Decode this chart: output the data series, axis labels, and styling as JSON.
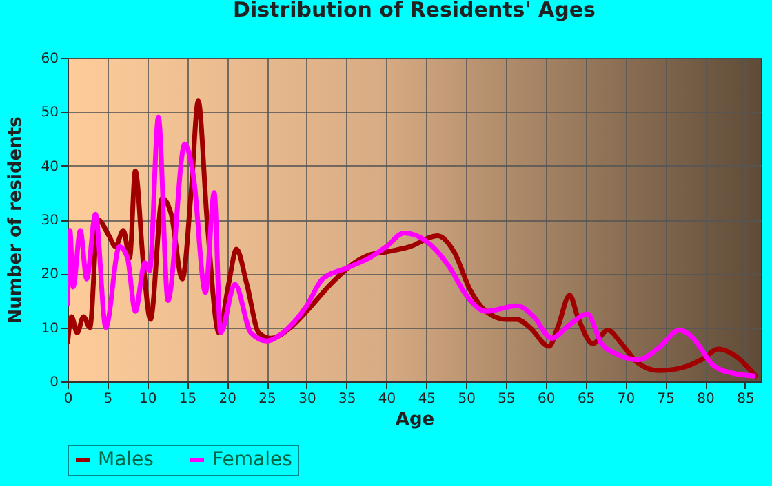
{
  "chart_data": {
    "type": "line",
    "title": "Distribution of Residents' Ages",
    "xlabel": "Age",
    "ylabel": "Number of residents",
    "xlim": [
      0,
      87
    ],
    "xticks": [
      0,
      5,
      10,
      15,
      20,
      25,
      30,
      35,
      40,
      45,
      50,
      55,
      60,
      65,
      70,
      75,
      80,
      85
    ],
    "ylim": [
      0,
      60
    ],
    "yticks": [
      0,
      10,
      20,
      30,
      40,
      50,
      60
    ],
    "grid": true,
    "legend": "bottom",
    "marker": "none",
    "line_style": "solid",
    "series": [
      {
        "name": "Males",
        "color": "#a00000",
        "x": [
          0,
          0.5,
          1.2,
          2,
          2.8,
          3.8,
          5.2,
          6,
          7,
          7.8,
          8.5,
          9.5,
          10.4,
          11.9,
          13,
          14.4,
          15.5,
          16.4,
          17.5,
          19,
          20.2,
          21.2,
          22.5,
          24,
          25.5,
          28,
          30,
          33,
          36,
          38,
          40,
          43,
          46.4,
          48.5,
          50.5,
          52.5,
          55,
          56.4,
          58,
          60.4,
          61.5,
          63,
          64,
          65.9,
          67.8,
          69.5,
          71.5,
          74.2,
          77,
          79.5,
          81.7,
          83.5,
          86.5
        ],
        "values": [
          7,
          12,
          9,
          12,
          10,
          30,
          27,
          25,
          28,
          23,
          39,
          22,
          11.5,
          34,
          31,
          19,
          35,
          52,
          30,
          9,
          18,
          24.5,
          18,
          9,
          8,
          10,
          13,
          18,
          22,
          23.5,
          24,
          25,
          27,
          24,
          17,
          13,
          11.5,
          11.5,
          10,
          6.5,
          10,
          16,
          12,
          7,
          9.5,
          7,
          3.5,
          2,
          2.5,
          4,
          6,
          5,
          0.7
        ]
      },
      {
        "name": "Females",
        "color": "#ff00ff",
        "x": [
          0,
          0.3,
          0.7,
          1.6,
          2.4,
          3.5,
          4.8,
          6.5,
          7.5,
          8.5,
          9.7,
          10.3,
          11.4,
          12.6,
          14.7,
          15.8,
          17.3,
          18.4,
          19.2,
          21,
          23,
          25,
          27,
          30,
          32,
          35,
          38,
          40,
          42.2,
          45,
          48,
          50,
          52.5,
          56.4,
          58.5,
          60.7,
          63,
          65.2,
          67,
          69,
          71.6,
          74,
          76.8,
          78.5,
          81,
          83.5,
          86.3
        ],
        "values": [
          14,
          28,
          17.5,
          28,
          19,
          31,
          10,
          25,
          23,
          13,
          22,
          20.5,
          49,
          15,
          44,
          38,
          16.5,
          35,
          9,
          18,
          9,
          7.5,
          9,
          14,
          19,
          21,
          23,
          25,
          27.5,
          26,
          21,
          16,
          13,
          14,
          12,
          8,
          10.5,
          12.5,
          7,
          5,
          4,
          6,
          9.5,
          8,
          3,
          1.5,
          1
        ]
      }
    ]
  }
}
